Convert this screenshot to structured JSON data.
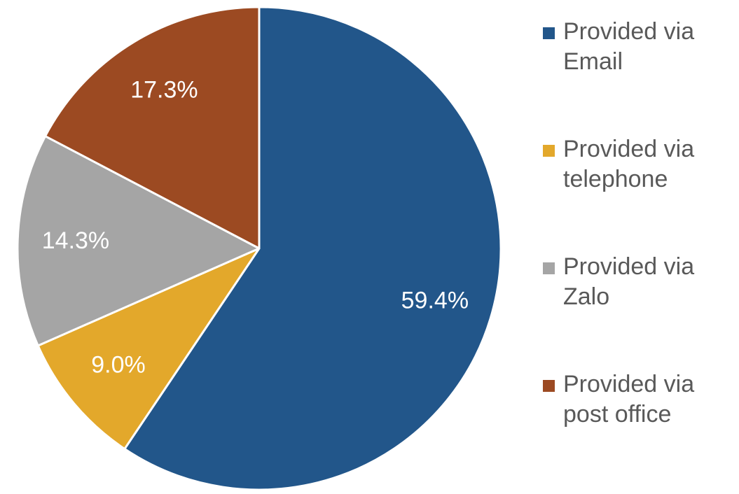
{
  "chart_data": {
    "type": "pie",
    "categories": [
      "Provided via Email",
      "Provided via telephone",
      "Provided via Zalo",
      "Provided via post office"
    ],
    "values": [
      59.4,
      9.0,
      14.3,
      17.3
    ],
    "value_labels": [
      "59.4%",
      "9.0%",
      "14.3%",
      "17.3%"
    ],
    "colors": [
      "#22568a",
      "#e3a82b",
      "#a5a5a5",
      "#9c4a22"
    ],
    "legend": "right"
  }
}
